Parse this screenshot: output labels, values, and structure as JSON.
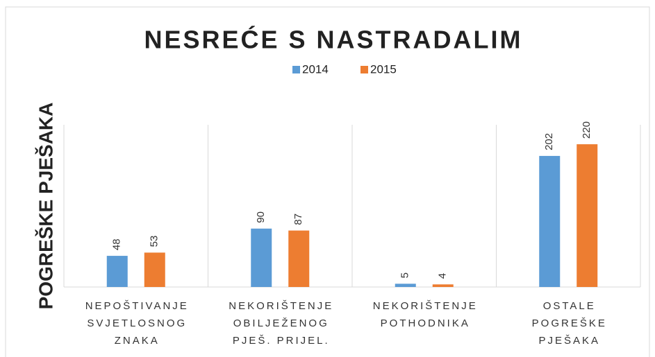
{
  "chart_data": {
    "type": "bar",
    "title": "NESREĆE S NASTRADALIM",
    "ylabel": "POGREŠKE PJEŠAKA",
    "categories": [
      "NEPOŠTIVANJE\nSVJETLOSNOG\nZNAKA",
      "NEKORIŠTENJE\nOBILJEŽENOG\nPJEŠ. PRIJEL.",
      "NEKORIŠTENJE\nPOTHODNIKA",
      "OSTALE\nPOGREŠKE\nPJEŠAKA"
    ],
    "series": [
      {
        "name": "2014",
        "color": "#5b9bd5",
        "values": [
          48,
          90,
          5,
          202
        ]
      },
      {
        "name": "2015",
        "color": "#ed7d31",
        "values": [
          53,
          87,
          4,
          220
        ]
      }
    ],
    "ylim": [
      0,
      250
    ],
    "grid": false
  }
}
